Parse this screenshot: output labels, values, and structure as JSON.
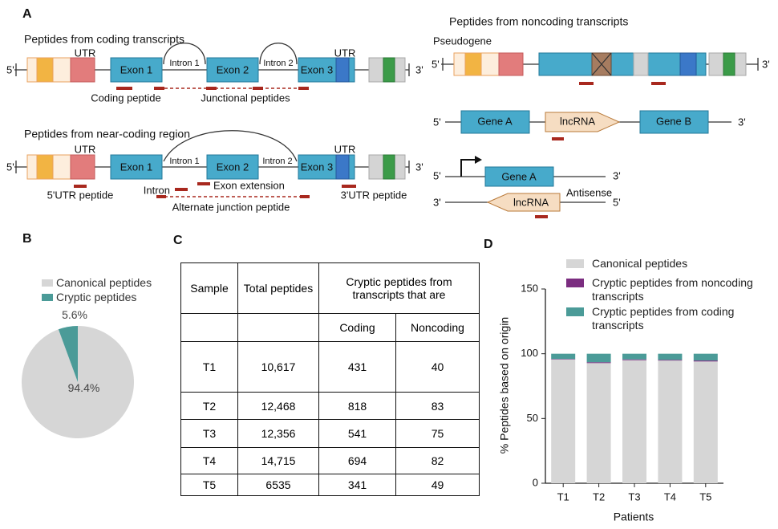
{
  "panel_labels": [
    "A",
    "B",
    "C",
    "D"
  ],
  "diagram": {
    "end5": "5'",
    "end3": "3'",
    "utr": "UTR",
    "coding": {
      "title": "Peptides from coding transcripts",
      "exons": [
        "Exon 1",
        "Exon 2",
        "Exon 3"
      ],
      "introns": [
        "Intron 1",
        "Intron 2"
      ],
      "peptides": [
        "Coding peptide",
        "Junctional peptides"
      ]
    },
    "near_coding": {
      "title": "Peptides from near-coding region",
      "exons": [
        "Exon 1",
        "Exon 2",
        "Exon 3"
      ],
      "introns": [
        "Intron 1",
        "Intron 2"
      ],
      "peptides": [
        "5'UTR peptide",
        "Intron",
        "Exon extension",
        "Alternate junction peptide",
        "3'UTR peptide"
      ]
    },
    "noncoding": {
      "title": "Peptides from noncoding transcripts",
      "pseudogene": "Pseudogene",
      "genes": [
        "Gene A",
        "lncRNA",
        "Gene B"
      ],
      "antisense_gene": "Gene A",
      "antisense_lnc": "lncRNA",
      "antisense": "Antisense"
    }
  },
  "table": {
    "header": [
      "Sample",
      "Total peptides",
      "Cryptic peptides from transcripts that are"
    ],
    "subheader": [
      "Coding",
      "Noncoding"
    ],
    "rows": [
      [
        "T1",
        "10,617",
        "431",
        "40"
      ],
      [
        "T2",
        "12,468",
        "818",
        "83"
      ],
      [
        "T3",
        "12,356",
        "541",
        "75"
      ],
      [
        "T4",
        "14,715",
        "694",
        "82"
      ],
      [
        "T5",
        "6535",
        "341",
        "49"
      ]
    ]
  },
  "chart_data": [
    {
      "type": "pie",
      "categories": [
        "Canonical peptides",
        "Cryptic peptides"
      ],
      "values": [
        94.4,
        5.6
      ],
      "value_labels": [
        "94.4%",
        "5.6%"
      ],
      "colors": [
        "#d6d6d6",
        "#4b9b98"
      ]
    },
    {
      "type": "bar",
      "stacked": true,
      "categories": [
        "T1",
        "T2",
        "T3",
        "T4",
        "T5"
      ],
      "series": [
        {
          "name": "Canonical peptides",
          "color": "#d6d6d6",
          "values": [
            95.56,
            92.77,
            95.01,
            94.72,
            94.03
          ]
        },
        {
          "name": "Cryptic peptides from noncoding transcripts",
          "color": "#7b2d80",
          "values": [
            0.38,
            0.67,
            0.61,
            0.56,
            0.75
          ]
        },
        {
          "name": "Cryptic peptides from coding transcripts",
          "color": "#4b9b98",
          "values": [
            4.06,
            6.56,
            4.38,
            4.72,
            5.22
          ]
        }
      ],
      "ylim": [
        0,
        150
      ],
      "yticks": [
        0,
        50,
        100,
        150
      ],
      "ylabel": "% Peptides based on origin",
      "xlabel": "Patients"
    }
  ]
}
